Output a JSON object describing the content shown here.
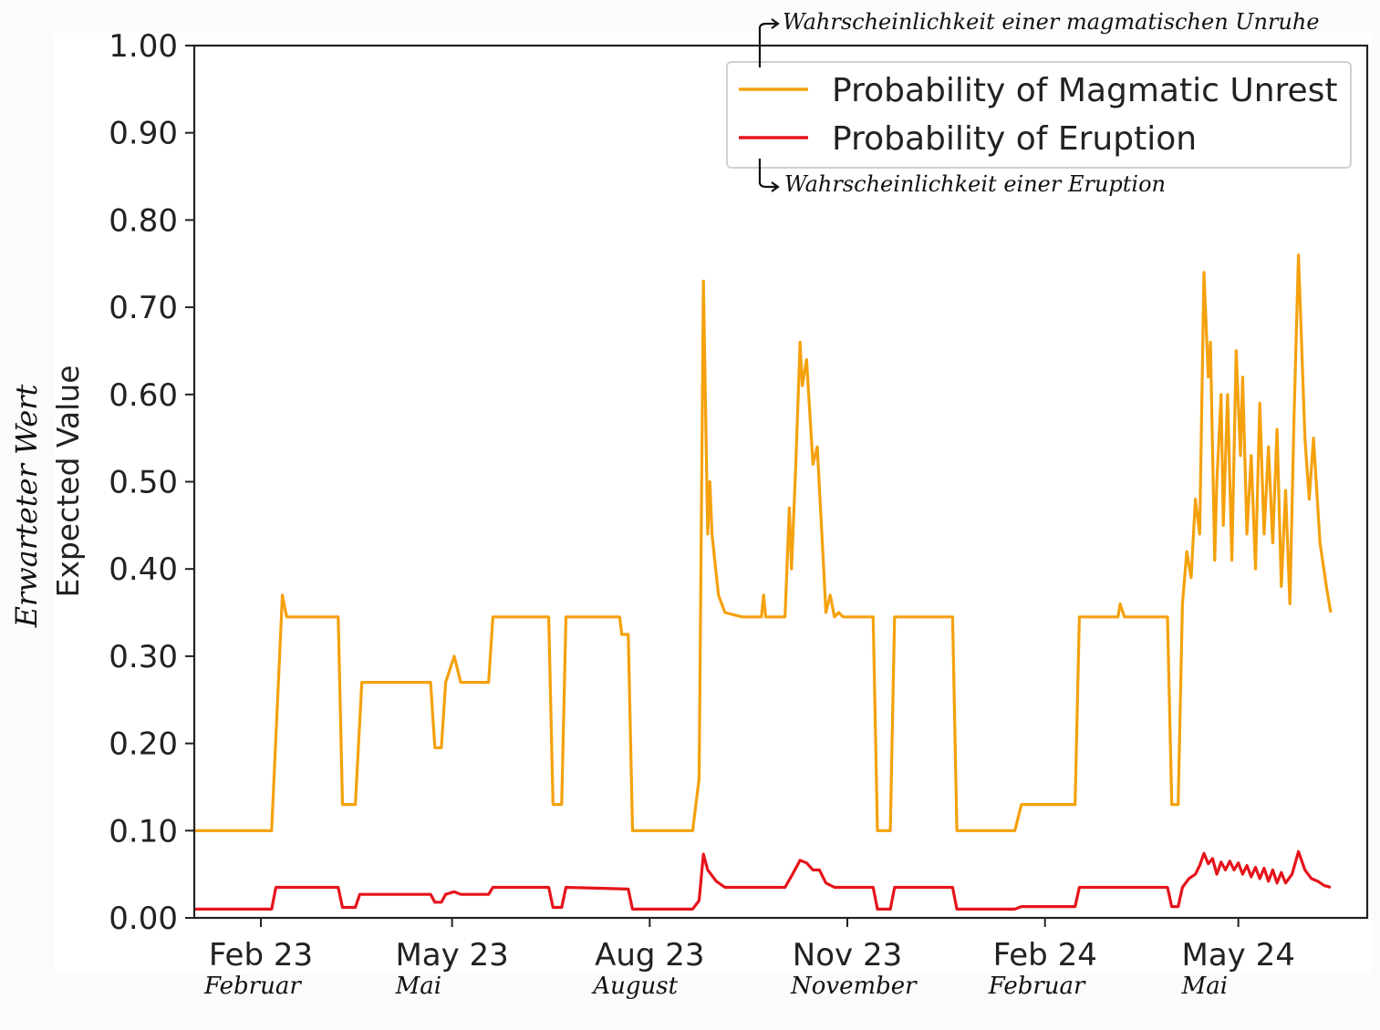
{
  "chart_data": {
    "type": "line",
    "ylabel": "Expected Value",
    "ylabel_translation": "Erwarteter Wert",
    "ylim": [
      0,
      1
    ],
    "yticks": [
      "0.00",
      "0.10",
      "0.20",
      "0.30",
      "0.40",
      "0.50",
      "0.60",
      "0.70",
      "0.80",
      "0.90",
      "1.00"
    ],
    "xlim": [
      "2023-01-01",
      "2024-06-30"
    ],
    "xticks": [
      {
        "label": "Feb 23",
        "translation": "Februar",
        "date": "2023-02-01"
      },
      {
        "label": "May 23",
        "translation": "Mai",
        "date": "2023-05-01"
      },
      {
        "label": "Aug 23",
        "translation": "August",
        "date": "2023-08-01"
      },
      {
        "label": "Nov 23",
        "translation": "November",
        "date": "2023-11-01"
      },
      {
        "label": "Feb 24",
        "translation": "Februar",
        "date": "2024-02-01"
      },
      {
        "label": "May 24",
        "translation": "Mai",
        "date": "2024-05-01"
      }
    ],
    "legend_position": "top-right",
    "series": [
      {
        "name": "Probability of Magmatic Unrest",
        "annotation": "Wahrscheinlichkeit einer magmatischen Unruhe",
        "color": "#f5a10d",
        "points": [
          [
            "2023-01-01",
            0.1
          ],
          [
            "2023-02-06",
            0.1
          ],
          [
            "2023-02-11",
            0.37
          ],
          [
            "2023-02-13",
            0.345
          ],
          [
            "2023-03-09",
            0.345
          ],
          [
            "2023-03-11",
            0.13
          ],
          [
            "2023-03-17",
            0.13
          ],
          [
            "2023-03-20",
            0.27
          ],
          [
            "2023-04-21",
            0.27
          ],
          [
            "2023-04-23",
            0.195
          ],
          [
            "2023-04-26",
            0.195
          ],
          [
            "2023-04-28",
            0.27
          ],
          [
            "2023-05-02",
            0.3
          ],
          [
            "2023-05-05",
            0.27
          ],
          [
            "2023-05-18",
            0.27
          ],
          [
            "2023-05-20",
            0.345
          ],
          [
            "2023-06-15",
            0.345
          ],
          [
            "2023-06-17",
            0.13
          ],
          [
            "2023-06-21",
            0.13
          ],
          [
            "2023-06-23",
            0.345
          ],
          [
            "2023-07-18",
            0.345
          ],
          [
            "2023-07-19",
            0.325
          ],
          [
            "2023-07-22",
            0.325
          ],
          [
            "2023-07-24",
            0.1
          ],
          [
            "2023-08-21",
            0.1
          ],
          [
            "2023-08-24",
            0.16
          ],
          [
            "2023-08-26",
            0.73
          ],
          [
            "2023-08-28",
            0.44
          ],
          [
            "2023-08-29",
            0.5
          ],
          [
            "2023-08-30",
            0.44
          ],
          [
            "2023-09-02",
            0.37
          ],
          [
            "2023-09-05",
            0.35
          ],
          [
            "2023-09-13",
            0.345
          ],
          [
            "2023-09-22",
            0.345
          ],
          [
            "2023-09-23",
            0.37
          ],
          [
            "2023-09-24",
            0.345
          ],
          [
            "2023-10-03",
            0.345
          ],
          [
            "2023-10-05",
            0.47
          ],
          [
            "2023-10-06",
            0.4
          ],
          [
            "2023-10-08",
            0.52
          ],
          [
            "2023-10-10",
            0.66
          ],
          [
            "2023-10-11",
            0.61
          ],
          [
            "2023-10-13",
            0.64
          ],
          [
            "2023-10-16",
            0.52
          ],
          [
            "2023-10-18",
            0.54
          ],
          [
            "2023-10-21",
            0.4
          ],
          [
            "2023-10-22",
            0.35
          ],
          [
            "2023-10-24",
            0.37
          ],
          [
            "2023-10-26",
            0.345
          ],
          [
            "2023-10-28",
            0.35
          ],
          [
            "2023-10-30",
            0.345
          ],
          [
            "2023-11-13",
            0.345
          ],
          [
            "2023-11-15",
            0.1
          ],
          [
            "2023-11-21",
            0.1
          ],
          [
            "2023-11-23",
            0.345
          ],
          [
            "2023-12-20",
            0.345
          ],
          [
            "2023-12-22",
            0.1
          ],
          [
            "2024-01-18",
            0.1
          ],
          [
            "2024-01-21",
            0.13
          ],
          [
            "2024-02-15",
            0.13
          ],
          [
            "2024-02-17",
            0.345
          ],
          [
            "2024-03-06",
            0.345
          ],
          [
            "2024-03-07",
            0.36
          ],
          [
            "2024-03-09",
            0.345
          ],
          [
            "2024-03-29",
            0.345
          ],
          [
            "2024-03-31",
            0.13
          ],
          [
            "2024-04-03",
            0.13
          ],
          [
            "2024-04-05",
            0.36
          ],
          [
            "2024-04-07",
            0.42
          ],
          [
            "2024-04-09",
            0.39
          ],
          [
            "2024-04-11",
            0.48
          ],
          [
            "2024-04-13",
            0.44
          ],
          [
            "2024-04-15",
            0.74
          ],
          [
            "2024-04-17",
            0.62
          ],
          [
            "2024-04-18",
            0.66
          ],
          [
            "2024-04-20",
            0.41
          ],
          [
            "2024-04-21",
            0.5
          ],
          [
            "2024-04-23",
            0.6
          ],
          [
            "2024-04-24",
            0.45
          ],
          [
            "2024-04-26",
            0.6
          ],
          [
            "2024-04-28",
            0.41
          ],
          [
            "2024-04-30",
            0.65
          ],
          [
            "2024-05-02",
            0.53
          ],
          [
            "2024-05-03",
            0.62
          ],
          [
            "2024-05-05",
            0.44
          ],
          [
            "2024-05-07",
            0.53
          ],
          [
            "2024-05-09",
            0.4
          ],
          [
            "2024-05-11",
            0.59
          ],
          [
            "2024-05-13",
            0.44
          ],
          [
            "2024-05-15",
            0.54
          ],
          [
            "2024-05-17",
            0.43
          ],
          [
            "2024-05-19",
            0.56
          ],
          [
            "2024-05-21",
            0.38
          ],
          [
            "2024-05-23",
            0.49
          ],
          [
            "2024-05-25",
            0.36
          ],
          [
            "2024-05-27",
            0.58
          ],
          [
            "2024-05-29",
            0.76
          ],
          [
            "2024-06-01",
            0.55
          ],
          [
            "2024-06-03",
            0.48
          ],
          [
            "2024-06-05",
            0.55
          ],
          [
            "2024-06-08",
            0.43
          ],
          [
            "2024-06-11",
            0.38
          ],
          [
            "2024-06-13",
            0.35
          ]
        ]
      },
      {
        "name": "Probability of Eruption",
        "annotation": "Wahrscheinlichkeit einer Eruption",
        "color": "#e5141b",
        "points": [
          [
            "2023-01-01",
            0.01
          ],
          [
            "2023-02-06",
            0.01
          ],
          [
            "2023-02-08",
            0.035
          ],
          [
            "2023-03-09",
            0.035
          ],
          [
            "2023-03-11",
            0.012
          ],
          [
            "2023-03-17",
            0.012
          ],
          [
            "2023-03-19",
            0.027
          ],
          [
            "2023-04-21",
            0.027
          ],
          [
            "2023-04-23",
            0.018
          ],
          [
            "2023-04-26",
            0.018
          ],
          [
            "2023-04-28",
            0.027
          ],
          [
            "2023-05-02",
            0.03
          ],
          [
            "2023-05-05",
            0.027
          ],
          [
            "2023-05-18",
            0.027
          ],
          [
            "2023-05-20",
            0.035
          ],
          [
            "2023-06-15",
            0.035
          ],
          [
            "2023-06-17",
            0.012
          ],
          [
            "2023-06-21",
            0.012
          ],
          [
            "2023-06-23",
            0.035
          ],
          [
            "2023-07-22",
            0.033
          ],
          [
            "2023-07-24",
            0.01
          ],
          [
            "2023-08-21",
            0.01
          ],
          [
            "2023-08-24",
            0.02
          ],
          [
            "2023-08-26",
            0.073
          ],
          [
            "2023-08-28",
            0.055
          ],
          [
            "2023-09-01",
            0.042
          ],
          [
            "2023-09-05",
            0.035
          ],
          [
            "2023-10-03",
            0.035
          ],
          [
            "2023-10-06",
            0.048
          ],
          [
            "2023-10-10",
            0.066
          ],
          [
            "2023-10-13",
            0.063
          ],
          [
            "2023-10-16",
            0.055
          ],
          [
            "2023-10-19",
            0.055
          ],
          [
            "2023-10-22",
            0.04
          ],
          [
            "2023-10-26",
            0.035
          ],
          [
            "2023-11-13",
            0.035
          ],
          [
            "2023-11-15",
            0.01
          ],
          [
            "2023-11-21",
            0.01
          ],
          [
            "2023-11-23",
            0.035
          ],
          [
            "2023-12-20",
            0.035
          ],
          [
            "2023-12-22",
            0.01
          ],
          [
            "2024-01-18",
            0.01
          ],
          [
            "2024-01-21",
            0.013
          ],
          [
            "2024-02-15",
            0.013
          ],
          [
            "2024-02-17",
            0.035
          ],
          [
            "2024-03-29",
            0.035
          ],
          [
            "2024-03-31",
            0.013
          ],
          [
            "2024-04-03",
            0.013
          ],
          [
            "2024-04-05",
            0.035
          ],
          [
            "2024-04-08",
            0.045
          ],
          [
            "2024-04-11",
            0.05
          ],
          [
            "2024-04-13",
            0.06
          ],
          [
            "2024-04-15",
            0.074
          ],
          [
            "2024-04-17",
            0.062
          ],
          [
            "2024-04-19",
            0.068
          ],
          [
            "2024-04-21",
            0.05
          ],
          [
            "2024-04-23",
            0.064
          ],
          [
            "2024-04-25",
            0.055
          ],
          [
            "2024-04-27",
            0.065
          ],
          [
            "2024-04-29",
            0.055
          ],
          [
            "2024-05-01",
            0.063
          ],
          [
            "2024-05-03",
            0.05
          ],
          [
            "2024-05-05",
            0.06
          ],
          [
            "2024-05-07",
            0.047
          ],
          [
            "2024-05-09",
            0.058
          ],
          [
            "2024-05-11",
            0.045
          ],
          [
            "2024-05-13",
            0.057
          ],
          [
            "2024-05-15",
            0.042
          ],
          [
            "2024-05-17",
            0.055
          ],
          [
            "2024-05-19",
            0.04
          ],
          [
            "2024-05-21",
            0.052
          ],
          [
            "2024-05-23",
            0.04
          ],
          [
            "2024-05-26",
            0.05
          ],
          [
            "2024-05-29",
            0.076
          ],
          [
            "2024-06-01",
            0.055
          ],
          [
            "2024-06-04",
            0.045
          ],
          [
            "2024-06-07",
            0.042
          ],
          [
            "2024-06-10",
            0.037
          ],
          [
            "2024-06-13",
            0.035
          ]
        ]
      }
    ]
  }
}
